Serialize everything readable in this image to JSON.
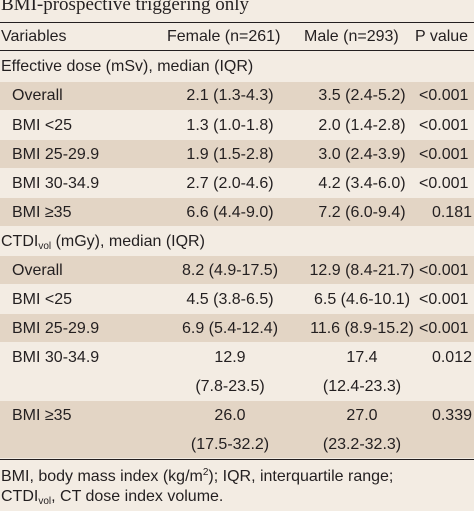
{
  "caption": "BMI-prospective triggering only",
  "header": {
    "variables": "Variables",
    "female": "Female (n=261)",
    "male": "Male (n=293)",
    "p": "P value"
  },
  "sections": [
    {
      "title_pre": "Effective dose (mSv), median (IQR)",
      "rows": [
        {
          "label": "Overall",
          "female": "2.1 (1.3-4.3)",
          "male": "3.5 (2.4-5.2)",
          "p": "<0.001"
        },
        {
          "label": "BMI <25",
          "female": "1.3 (1.0-1.8)",
          "male": "2.0 (1.4-2.8)",
          "p": "<0.001"
        },
        {
          "label": "BMI 25-29.9",
          "female": "1.9 (1.5-2.8)",
          "male": "3.0 (2.4-3.9)",
          "p": "<0.001"
        },
        {
          "label": "BMI 30-34.9",
          "female": "2.7 (2.0-4.6)",
          "male": "4.2 (3.4-6.0)",
          "p": "<0.001"
        },
        {
          "label": "BMI ≥35",
          "female": "6.6 (4.4-9.0)",
          "male": "7.2 (6.0-9.4)",
          "p": "0.181"
        }
      ]
    },
    {
      "title_pre": "CTDI",
      "title_sub": "vol",
      "title_post": " (mGy), median (IQR)",
      "rows": [
        {
          "label": "Overall",
          "female": "8.2 (4.9-17.5)",
          "male": "12.9 (8.4-21.7)",
          "p": "<0.001"
        },
        {
          "label": "BMI <25",
          "female": "4.5 (3.8-6.5)",
          "male": "6.5 (4.6-10.1)",
          "p": "<0.001"
        },
        {
          "label": "BMI 25-29.9",
          "female": "6.9 (5.4-12.4)",
          "male": "11.6 (8.9-15.2)",
          "p": "<0.001"
        },
        {
          "label": "BMI 30-34.9",
          "female": "12.9",
          "female2": "(7.8-23.5)",
          "male": "17.4",
          "male2": "(12.4-23.3)",
          "p": "0.012"
        },
        {
          "label": "BMI ≥35",
          "female": "26.0",
          "female2": "(17.5-32.2)",
          "male": "27.0",
          "male2": "(23.2-32.3)",
          "p": "0.339"
        }
      ]
    }
  ],
  "footnote": {
    "line1_pre": "BMI, body mass index (kg/m",
    "line1_sup": "2",
    "line1_post": "); IQR, interquartile range;",
    "line2_pre": "CTDI",
    "line2_sub": "vol",
    "line2_post": ", CT dose index volume."
  }
}
